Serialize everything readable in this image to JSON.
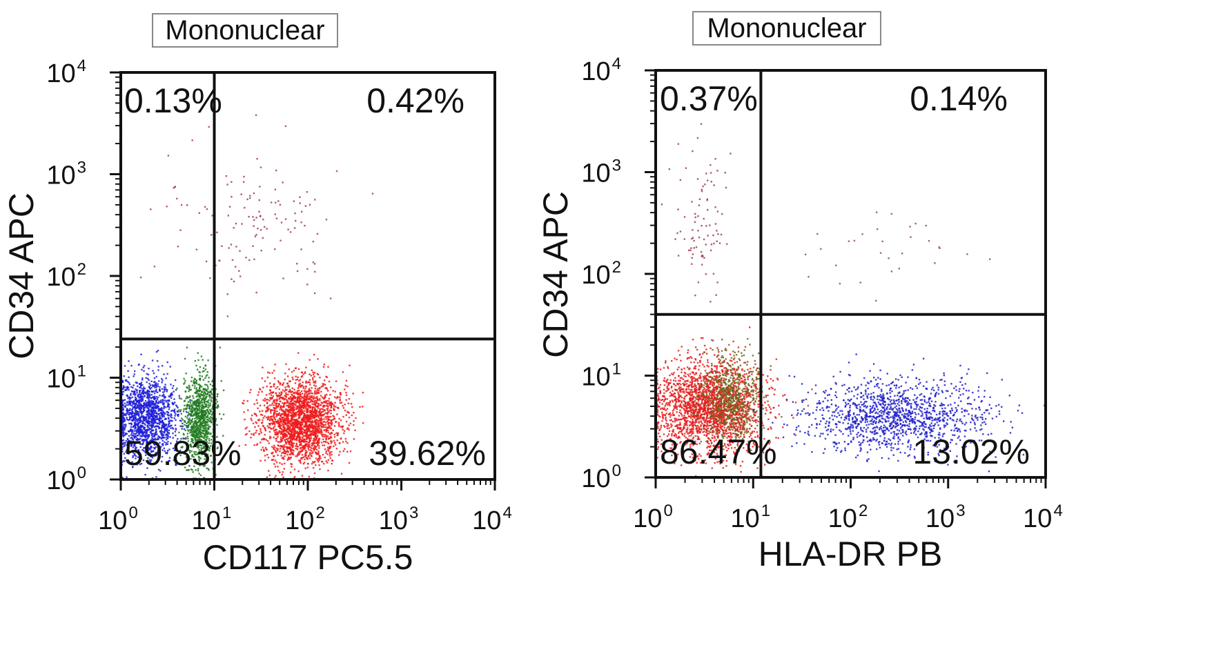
{
  "chart_data": [
    {
      "type": "scatter",
      "gate": "Mononuclear",
      "xlabel": "CD117 PC5.5",
      "ylabel": "CD34 APC",
      "xscale": "log",
      "yscale": "log",
      "xlim": [
        1,
        10000
      ],
      "ylim": [
        1,
        10000
      ],
      "xticks": [
        {
          "base": "10",
          "exp": "0"
        },
        {
          "base": "10",
          "exp": "1"
        },
        {
          "base": "10",
          "exp": "2"
        },
        {
          "base": "10",
          "exp": "3"
        },
        {
          "base": "10",
          "exp": "4"
        }
      ],
      "yticks": [
        {
          "base": "10",
          "exp": "0"
        },
        {
          "base": "10",
          "exp": "1"
        },
        {
          "base": "10",
          "exp": "2"
        },
        {
          "base": "10",
          "exp": "3"
        },
        {
          "base": "10",
          "exp": "4"
        }
      ],
      "quadrant_thresholds": {
        "x": 10,
        "y": 24
      },
      "quadrants": [
        {
          "position": "upper-left",
          "label": "0.13%"
        },
        {
          "position": "upper-right",
          "label": "0.42%"
        },
        {
          "position": "lower-left",
          "label": "59.83%"
        },
        {
          "position": "lower-right",
          "label": "39.62%"
        }
      ],
      "populations": [
        {
          "name": "blue",
          "color": "#1f1fd8",
          "x_center": 1.9,
          "y_center": 4,
          "x_spread_decades": 0.18,
          "y_spread_decades": 0.2,
          "events": 1500
        },
        {
          "name": "green",
          "color": "#1e7a1e",
          "x_center": 7,
          "y_center": 4,
          "x_spread_decades": 0.09,
          "y_spread_decades": 0.22,
          "events": 900
        },
        {
          "name": "red",
          "color": "#ee1b1b",
          "x_center": 85,
          "y_center": 3.8,
          "x_spread_decades": 0.22,
          "y_spread_decades": 0.2,
          "events": 2200
        },
        {
          "name": "sparse",
          "color": "#a04050",
          "x_center": 25,
          "y_center": 300,
          "x_spread_decades": 0.45,
          "y_spread_decades": 0.35,
          "events": 130
        }
      ]
    },
    {
      "type": "scatter",
      "gate": "Mononuclear",
      "xlabel": "HLA-DR PB",
      "ylabel": "CD34 APC",
      "xscale": "log",
      "yscale": "log",
      "xlim": [
        1,
        10000
      ],
      "ylim": [
        1,
        10000
      ],
      "xticks": [
        {
          "base": "10",
          "exp": "0"
        },
        {
          "base": "10",
          "exp": "1"
        },
        {
          "base": "10",
          "exp": "2"
        },
        {
          "base": "10",
          "exp": "3"
        },
        {
          "base": "10",
          "exp": "4"
        }
      ],
      "yticks": [
        {
          "base": "10",
          "exp": "0"
        },
        {
          "base": "10",
          "exp": "1"
        },
        {
          "base": "10",
          "exp": "2"
        },
        {
          "base": "10",
          "exp": "3"
        },
        {
          "base": "10",
          "exp": "4"
        }
      ],
      "quadrant_thresholds": {
        "x": 12,
        "y": 40
      },
      "quadrants": [
        {
          "position": "upper-left",
          "label": "0.37%"
        },
        {
          "position": "upper-right",
          "label": "0.14%"
        },
        {
          "position": "lower-left",
          "label": "86.47%"
        },
        {
          "position": "lower-right",
          "label": "13.02%"
        }
      ],
      "populations": [
        {
          "name": "red",
          "color": "#e51c1c",
          "x_center": 3.5,
          "y_center": 5,
          "x_spread_decades": 0.28,
          "y_spread_decades": 0.22,
          "events": 2200
        },
        {
          "name": "olive",
          "color": "#6a6a1c",
          "x_center": 6,
          "y_center": 6,
          "x_spread_decades": 0.15,
          "y_spread_decades": 0.2,
          "events": 600
        },
        {
          "name": "blue",
          "color": "#2020c8",
          "x_center": 300,
          "y_center": 4,
          "x_spread_decades": 0.45,
          "y_spread_decades": 0.18,
          "events": 1300
        },
        {
          "name": "sparse-upper-left",
          "color": "#a04050",
          "x_center": 3,
          "y_center": 300,
          "x_spread_decades": 0.15,
          "y_spread_decades": 0.35,
          "events": 90
        },
        {
          "name": "sparse-upper-right",
          "color": "#8a5060",
          "x_center": 250,
          "y_center": 200,
          "x_spread_decades": 0.45,
          "y_spread_decades": 0.25,
          "events": 30
        }
      ]
    }
  ]
}
